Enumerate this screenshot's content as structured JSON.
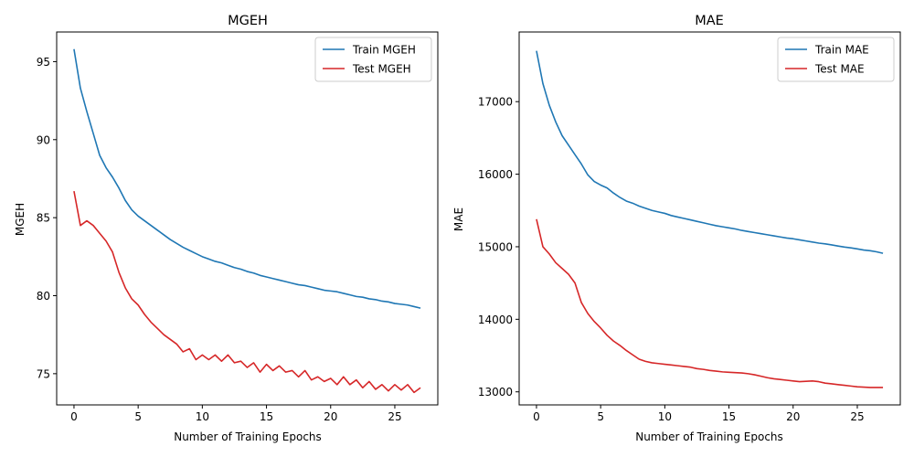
{
  "chart_data": [
    {
      "type": "line",
      "title": "MGEH",
      "xlabel": "Number of Training Epochs",
      "ylabel": "MGEH",
      "xlim": [
        -1.35,
        28.35
      ],
      "ylim": [
        73.0,
        96.9
      ],
      "xticks": [
        0,
        5,
        10,
        15,
        20,
        25
      ],
      "yticks": [
        75,
        80,
        85,
        90,
        95
      ],
      "grid": false,
      "legend": "top-right",
      "series": [
        {
          "name": "Train MGEH",
          "color": "#1f77b4",
          "x": [
            0,
            0.5,
            1,
            1.5,
            2,
            2.5,
            3,
            3.5,
            4,
            4.5,
            5,
            5.5,
            6,
            6.5,
            7,
            7.5,
            8,
            8.5,
            9,
            9.5,
            10,
            10.5,
            11,
            11.5,
            12,
            12.5,
            13,
            13.5,
            14,
            14.5,
            15,
            15.5,
            16,
            16.5,
            17,
            17.5,
            18,
            18.5,
            19,
            19.5,
            20,
            20.5,
            21,
            21.5,
            22,
            22.5,
            23,
            23.5,
            24,
            24.5,
            25,
            25.5,
            26,
            26.5,
            27
          ],
          "values": [
            95.8,
            93.3,
            91.8,
            90.4,
            89.0,
            88.2,
            87.6,
            86.9,
            86.1,
            85.5,
            85.1,
            84.8,
            84.5,
            84.2,
            83.9,
            83.6,
            83.35,
            83.1,
            82.9,
            82.7,
            82.5,
            82.35,
            82.2,
            82.1,
            81.95,
            81.8,
            81.7,
            81.55,
            81.45,
            81.3,
            81.2,
            81.1,
            81.0,
            80.9,
            80.8,
            80.7,
            80.65,
            80.55,
            80.45,
            80.35,
            80.3,
            80.25,
            80.15,
            80.05,
            79.95,
            79.9,
            79.8,
            79.75,
            79.65,
            79.6,
            79.5,
            79.45,
            79.4,
            79.3,
            79.2
          ]
        },
        {
          "name": "Test MGEH",
          "color": "#d62728",
          "x": [
            0,
            0.5,
            1,
            1.5,
            2,
            2.5,
            3,
            3.5,
            4,
            4.5,
            5,
            5.5,
            6,
            6.5,
            7,
            7.5,
            8,
            8.5,
            9,
            9.5,
            10,
            10.5,
            11,
            11.5,
            12,
            12.5,
            13,
            13.5,
            14,
            14.5,
            15,
            15.5,
            16,
            16.5,
            17,
            17.5,
            18,
            18.5,
            19,
            19.5,
            20,
            20.5,
            21,
            21.5,
            22,
            22.5,
            23,
            23.5,
            24,
            24.5,
            25,
            25.5,
            26,
            26.5,
            27
          ],
          "values": [
            86.7,
            84.5,
            84.8,
            84.5,
            84.0,
            83.5,
            82.8,
            81.5,
            80.5,
            79.8,
            79.4,
            78.8,
            78.3,
            77.9,
            77.5,
            77.2,
            76.9,
            76.4,
            76.6,
            75.9,
            76.2,
            75.9,
            76.2,
            75.8,
            76.2,
            75.7,
            75.8,
            75.4,
            75.7,
            75.1,
            75.6,
            75.2,
            75.5,
            75.1,
            75.2,
            74.8,
            75.2,
            74.6,
            74.8,
            74.5,
            74.7,
            74.3,
            74.8,
            74.3,
            74.6,
            74.1,
            74.5,
            74.0,
            74.3,
            73.9,
            74.3,
            73.95,
            74.3,
            73.8,
            74.1
          ]
        }
      ]
    },
    {
      "type": "line",
      "title": "MAE",
      "xlabel": "Number of Training Epochs",
      "ylabel": "MAE",
      "xlim": [
        -1.35,
        28.35
      ],
      "ylim": [
        12820,
        17960
      ],
      "xticks": [
        0,
        5,
        10,
        15,
        20,
        25
      ],
      "yticks": [
        13000,
        14000,
        15000,
        16000,
        17000
      ],
      "grid": false,
      "legend": "top-right",
      "series": [
        {
          "name": "Train MAE",
          "color": "#1f77b4",
          "x": [
            0,
            0.5,
            1,
            1.5,
            2,
            2.5,
            3,
            3.5,
            4,
            4.5,
            5,
            5.5,
            6,
            6.5,
            7,
            7.5,
            8,
            8.5,
            9,
            9.5,
            10,
            10.5,
            11,
            11.5,
            12,
            12.5,
            13,
            13.5,
            14,
            14.5,
            15,
            15.5,
            16,
            16.5,
            17,
            17.5,
            18,
            18.5,
            19,
            19.5,
            20,
            20.5,
            21,
            21.5,
            22,
            22.5,
            23,
            23.5,
            24,
            24.5,
            25,
            25.5,
            26,
            26.5,
            27
          ],
          "values": [
            17700,
            17250,
            16950,
            16720,
            16530,
            16400,
            16270,
            16140,
            15990,
            15900,
            15850,
            15810,
            15740,
            15680,
            15630,
            15600,
            15560,
            15530,
            15500,
            15480,
            15460,
            15430,
            15410,
            15390,
            15370,
            15350,
            15330,
            15310,
            15290,
            15275,
            15260,
            15245,
            15225,
            15210,
            15195,
            15180,
            15165,
            15150,
            15135,
            15120,
            15110,
            15095,
            15080,
            15065,
            15050,
            15040,
            15025,
            15010,
            14995,
            14985,
            14970,
            14955,
            14945,
            14930,
            14910
          ]
        },
        {
          "name": "Test MAE",
          "color": "#d62728",
          "x": [
            0,
            0.5,
            1,
            1.5,
            2,
            2.5,
            3,
            3.5,
            4,
            4.5,
            5,
            5.5,
            6,
            6.5,
            7,
            7.5,
            8,
            8.5,
            9,
            9.5,
            10,
            10.5,
            11,
            11.5,
            12,
            12.5,
            13,
            13.5,
            14,
            14.5,
            15,
            15.5,
            16,
            16.5,
            17,
            17.5,
            18,
            18.5,
            19,
            19.5,
            20,
            20.5,
            21,
            21.5,
            22,
            22.5,
            23,
            23.5,
            24,
            24.5,
            25,
            25.5,
            26,
            26.5,
            27
          ],
          "values": [
            15380,
            15000,
            14900,
            14780,
            14700,
            14620,
            14500,
            14230,
            14080,
            13970,
            13880,
            13780,
            13700,
            13640,
            13570,
            13510,
            13450,
            13420,
            13400,
            13390,
            13380,
            13370,
            13360,
            13350,
            13340,
            13320,
            13310,
            13295,
            13285,
            13275,
            13270,
            13265,
            13260,
            13250,
            13235,
            13215,
            13195,
            13180,
            13170,
            13160,
            13150,
            13140,
            13145,
            13150,
            13140,
            13120,
            13110,
            13100,
            13090,
            13080,
            13070,
            13065,
            13060,
            13060,
            13060
          ]
        }
      ]
    }
  ]
}
